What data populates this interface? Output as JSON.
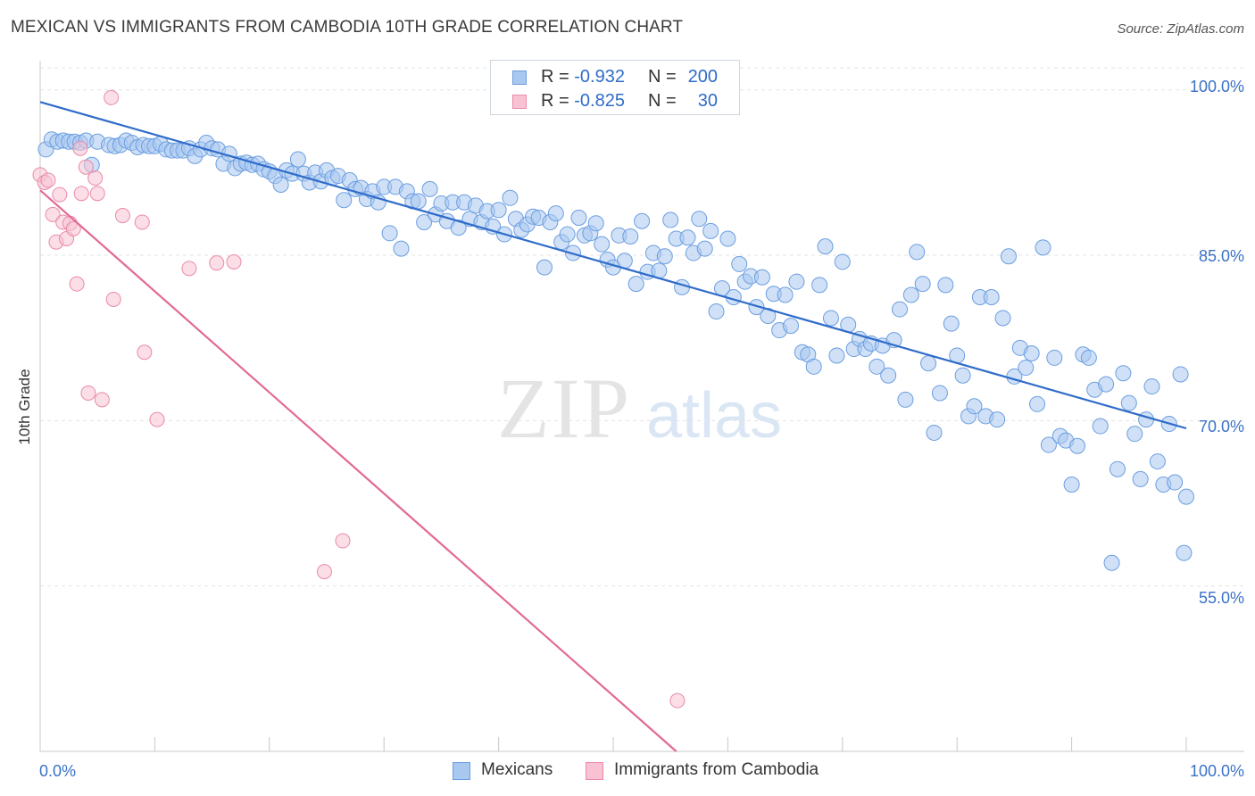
{
  "header": {
    "title": "MEXICAN VS IMMIGRANTS FROM CAMBODIA 10TH GRADE CORRELATION CHART",
    "source": "Source: ZipAtlas.com"
  },
  "watermark": {
    "zip": "ZIP",
    "atlas": "atlas"
  },
  "legend_top": {
    "rows": [
      {
        "r_label": "R =",
        "r_value": "-0.932",
        "n_label": "N =",
        "n_value": "200",
        "color": "#a9c8f0",
        "border": "#6b9ee0"
      },
      {
        "r_label": "R =",
        "r_value": "-0.825",
        "n_label": "N =",
        "n_value": "30",
        "color": "#f8c2d2",
        "border": "#e98aaa"
      }
    ]
  },
  "legend_bottom": {
    "items": [
      {
        "label": "Mexicans",
        "color": "#a9c8f0",
        "border": "#6b9ee0"
      },
      {
        "label": "Immigrants from Cambodia",
        "color": "#f8c2d2",
        "border": "#e98aaa"
      }
    ]
  },
  "chart_data": {
    "type": "scatter",
    "title": "MEXICAN VS IMMIGRANTS FROM CAMBODIA 10TH GRADE CORRELATION CHART",
    "xlabel": "",
    "ylabel": "10th Grade",
    "xlim": [
      0,
      100
    ],
    "ylim": [
      40,
      102
    ],
    "x_tick_labels": [
      "0.0%",
      "100.0%"
    ],
    "y_ticks": [
      55,
      70,
      85,
      100
    ],
    "y_tick_labels": [
      "55.0%",
      "70.0%",
      "85.0%",
      "100.0%"
    ],
    "grid": true,
    "legend_position": "top-center",
    "series": [
      {
        "name": "Mexicans",
        "color": "#6b9ee0",
        "fill": "#a9c8f0",
        "r": -0.932,
        "n": 200,
        "trend": {
          "x": [
            0,
            100
          ],
          "y": [
            98.9,
            69.3
          ]
        },
        "points": [
          [
            0.5,
            94.6
          ],
          [
            1.0,
            95.5
          ],
          [
            1.5,
            95.3
          ],
          [
            2.0,
            95.4
          ],
          [
            2.5,
            95.3
          ],
          [
            3.0,
            95.3
          ],
          [
            3.5,
            95.2
          ],
          [
            4.0,
            95.4
          ],
          [
            4.5,
            93.2
          ],
          [
            5.0,
            95.3
          ],
          [
            6.0,
            95.0
          ],
          [
            6.5,
            94.9
          ],
          [
            7.0,
            95.0
          ],
          [
            7.5,
            95.4
          ],
          [
            8.0,
            95.2
          ],
          [
            8.5,
            94.8
          ],
          [
            9.0,
            95.0
          ],
          [
            9.5,
            94.9
          ],
          [
            10.0,
            94.9
          ],
          [
            10.5,
            95.1
          ],
          [
            11.0,
            94.6
          ],
          [
            11.5,
            94.5
          ],
          [
            12.0,
            94.5
          ],
          [
            12.5,
            94.5
          ],
          [
            13.0,
            94.7
          ],
          [
            13.5,
            94.0
          ],
          [
            14.0,
            94.6
          ],
          [
            14.5,
            95.2
          ],
          [
            15.0,
            94.7
          ],
          [
            15.5,
            94.6
          ],
          [
            16.0,
            93.3
          ],
          [
            16.5,
            94.2
          ],
          [
            17.0,
            92.9
          ],
          [
            17.5,
            93.3
          ],
          [
            18.0,
            93.4
          ],
          [
            18.5,
            93.2
          ],
          [
            19.0,
            93.3
          ],
          [
            19.5,
            92.8
          ],
          [
            20.0,
            92.6
          ],
          [
            20.5,
            92.2
          ],
          [
            21.0,
            91.4
          ],
          [
            21.5,
            92.7
          ],
          [
            22.0,
            92.4
          ],
          [
            22.5,
            93.7
          ],
          [
            23.0,
            92.4
          ],
          [
            23.5,
            91.6
          ],
          [
            24.0,
            92.5
          ],
          [
            24.5,
            91.7
          ],
          [
            25.0,
            92.7
          ],
          [
            25.5,
            92.0
          ],
          [
            26.0,
            92.2
          ],
          [
            26.5,
            90.0
          ],
          [
            27.0,
            91.8
          ],
          [
            27.5,
            91.0
          ],
          [
            28.0,
            91.1
          ],
          [
            28.5,
            90.1
          ],
          [
            29.0,
            90.8
          ],
          [
            29.5,
            89.8
          ],
          [
            30.0,
            91.2
          ],
          [
            30.5,
            87.0
          ],
          [
            31.0,
            91.2
          ],
          [
            31.5,
            85.6
          ],
          [
            32.0,
            90.8
          ],
          [
            32.5,
            89.9
          ],
          [
            33.0,
            89.9
          ],
          [
            33.5,
            88.0
          ],
          [
            34.0,
            91.0
          ],
          [
            34.5,
            88.7
          ],
          [
            35.0,
            89.7
          ],
          [
            35.5,
            88.1
          ],
          [
            36.0,
            89.8
          ],
          [
            36.5,
            87.5
          ],
          [
            37.0,
            89.8
          ],
          [
            37.5,
            88.3
          ],
          [
            38.0,
            89.5
          ],
          [
            38.5,
            88.0
          ],
          [
            39.0,
            89.0
          ],
          [
            39.5,
            87.6
          ],
          [
            40.0,
            89.1
          ],
          [
            40.5,
            86.9
          ],
          [
            41.0,
            90.2
          ],
          [
            41.5,
            88.3
          ],
          [
            42.0,
            87.3
          ],
          [
            42.5,
            87.8
          ],
          [
            43.0,
            88.5
          ],
          [
            43.5,
            88.4
          ],
          [
            44.0,
            83.9
          ],
          [
            44.5,
            88.0
          ],
          [
            45.0,
            88.8
          ],
          [
            45.5,
            86.2
          ],
          [
            46.0,
            86.9
          ],
          [
            46.5,
            85.2
          ],
          [
            47.0,
            88.4
          ],
          [
            47.5,
            86.8
          ],
          [
            48.0,
            87.0
          ],
          [
            48.5,
            87.9
          ],
          [
            49.0,
            86.0
          ],
          [
            49.5,
            84.6
          ],
          [
            50.0,
            83.9
          ],
          [
            50.5,
            86.8
          ],
          [
            51.0,
            84.5
          ],
          [
            51.5,
            86.7
          ],
          [
            52.0,
            82.4
          ],
          [
            52.5,
            88.1
          ],
          [
            53.0,
            83.5
          ],
          [
            53.5,
            85.2
          ],
          [
            54.0,
            83.6
          ],
          [
            54.5,
            84.9
          ],
          [
            55.0,
            88.2
          ],
          [
            55.5,
            86.5
          ],
          [
            56.0,
            82.1
          ],
          [
            56.5,
            86.6
          ],
          [
            57.0,
            85.2
          ],
          [
            57.5,
            88.3
          ],
          [
            58.0,
            85.6
          ],
          [
            58.5,
            87.2
          ],
          [
            59.0,
            79.9
          ],
          [
            59.5,
            82.0
          ],
          [
            60.0,
            86.5
          ],
          [
            60.5,
            81.2
          ],
          [
            61.0,
            84.2
          ],
          [
            61.5,
            82.6
          ],
          [
            62.0,
            83.1
          ],
          [
            62.5,
            80.3
          ],
          [
            63.0,
            83.0
          ],
          [
            63.5,
            79.5
          ],
          [
            64.0,
            81.5
          ],
          [
            64.5,
            78.2
          ],
          [
            65.0,
            81.4
          ],
          [
            65.5,
            78.6
          ],
          [
            66.0,
            82.6
          ],
          [
            66.5,
            76.2
          ],
          [
            67.0,
            76.0
          ],
          [
            67.5,
            74.9
          ],
          [
            68.0,
            82.3
          ],
          [
            68.5,
            85.8
          ],
          [
            69.0,
            79.3
          ],
          [
            69.5,
            75.9
          ],
          [
            70.0,
            84.4
          ],
          [
            70.5,
            78.7
          ],
          [
            71.0,
            76.5
          ],
          [
            71.5,
            77.4
          ],
          [
            72.0,
            76.5
          ],
          [
            72.5,
            77.0
          ],
          [
            73.0,
            74.9
          ],
          [
            73.5,
            76.8
          ],
          [
            74.0,
            74.1
          ],
          [
            74.5,
            77.3
          ],
          [
            75.0,
            80.1
          ],
          [
            75.5,
            71.9
          ],
          [
            76.0,
            81.4
          ],
          [
            76.5,
            85.3
          ],
          [
            77.0,
            82.4
          ],
          [
            77.5,
            75.2
          ],
          [
            78.0,
            68.9
          ],
          [
            78.5,
            72.5
          ],
          [
            79.0,
            82.3
          ],
          [
            79.5,
            78.8
          ],
          [
            80.0,
            75.9
          ],
          [
            80.5,
            74.1
          ],
          [
            81.0,
            70.4
          ],
          [
            81.5,
            71.3
          ],
          [
            82.0,
            81.2
          ],
          [
            82.5,
            70.4
          ],
          [
            83.0,
            81.2
          ],
          [
            83.5,
            70.1
          ],
          [
            84.0,
            79.3
          ],
          [
            84.5,
            84.9
          ],
          [
            85.0,
            74.0
          ],
          [
            85.5,
            76.6
          ],
          [
            86.0,
            74.8
          ],
          [
            86.5,
            76.1
          ],
          [
            87.0,
            71.5
          ],
          [
            87.5,
            85.7
          ],
          [
            88.0,
            67.8
          ],
          [
            88.5,
            75.7
          ],
          [
            89.0,
            68.6
          ],
          [
            89.5,
            68.2
          ],
          [
            90.0,
            64.2
          ],
          [
            90.5,
            67.7
          ],
          [
            91.0,
            76.0
          ],
          [
            91.5,
            75.7
          ],
          [
            92.0,
            72.8
          ],
          [
            92.5,
            69.5
          ],
          [
            93.0,
            73.3
          ],
          [
            93.5,
            57.1
          ],
          [
            94.0,
            65.6
          ],
          [
            94.5,
            74.3
          ],
          [
            95.0,
            71.6
          ],
          [
            95.5,
            68.8
          ],
          [
            96.0,
            64.7
          ],
          [
            96.5,
            70.1
          ],
          [
            97.0,
            73.1
          ],
          [
            97.5,
            66.3
          ],
          [
            98.0,
            64.2
          ],
          [
            98.5,
            69.7
          ],
          [
            99.0,
            64.4
          ],
          [
            99.5,
            74.2
          ],
          [
            99.8,
            58.0
          ],
          [
            100.0,
            63.1
          ]
        ]
      },
      {
        "name": "Immigrants from Cambodia",
        "color": "#e98aaa",
        "fill": "#f8c2d2",
        "r": -0.825,
        "n": 30,
        "trend": {
          "x": [
            0,
            55.5
          ],
          "y": [
            90.9,
            40.0
          ]
        },
        "points": [
          [
            0.0,
            92.3
          ],
          [
            0.4,
            91.6
          ],
          [
            0.7,
            91.8
          ],
          [
            1.1,
            88.7
          ],
          [
            1.4,
            86.2
          ],
          [
            1.7,
            90.5
          ],
          [
            2.0,
            88.0
          ],
          [
            2.3,
            86.5
          ],
          [
            2.6,
            87.9
          ],
          [
            2.9,
            87.4
          ],
          [
            3.2,
            82.4
          ],
          [
            3.5,
            94.7
          ],
          [
            3.6,
            90.6
          ],
          [
            4.0,
            93.0
          ],
          [
            4.2,
            72.5
          ],
          [
            4.8,
            92.0
          ],
          [
            5.0,
            90.6
          ],
          [
            5.4,
            71.9
          ],
          [
            6.2,
            99.3
          ],
          [
            6.4,
            81.0
          ],
          [
            7.2,
            88.6
          ],
          [
            8.9,
            88.0
          ],
          [
            9.1,
            76.2
          ],
          [
            10.2,
            70.1
          ],
          [
            13.0,
            83.8
          ],
          [
            15.4,
            84.3
          ],
          [
            16.9,
            84.4
          ],
          [
            24.8,
            56.3
          ],
          [
            26.4,
            59.1
          ],
          [
            55.6,
            44.6
          ]
        ]
      }
    ]
  },
  "colors": {
    "blue_line": "#2f6cc9",
    "pink_line": "#e26a96",
    "grid": "#e3e3e3",
    "axis_text": "#3a72c8"
  }
}
